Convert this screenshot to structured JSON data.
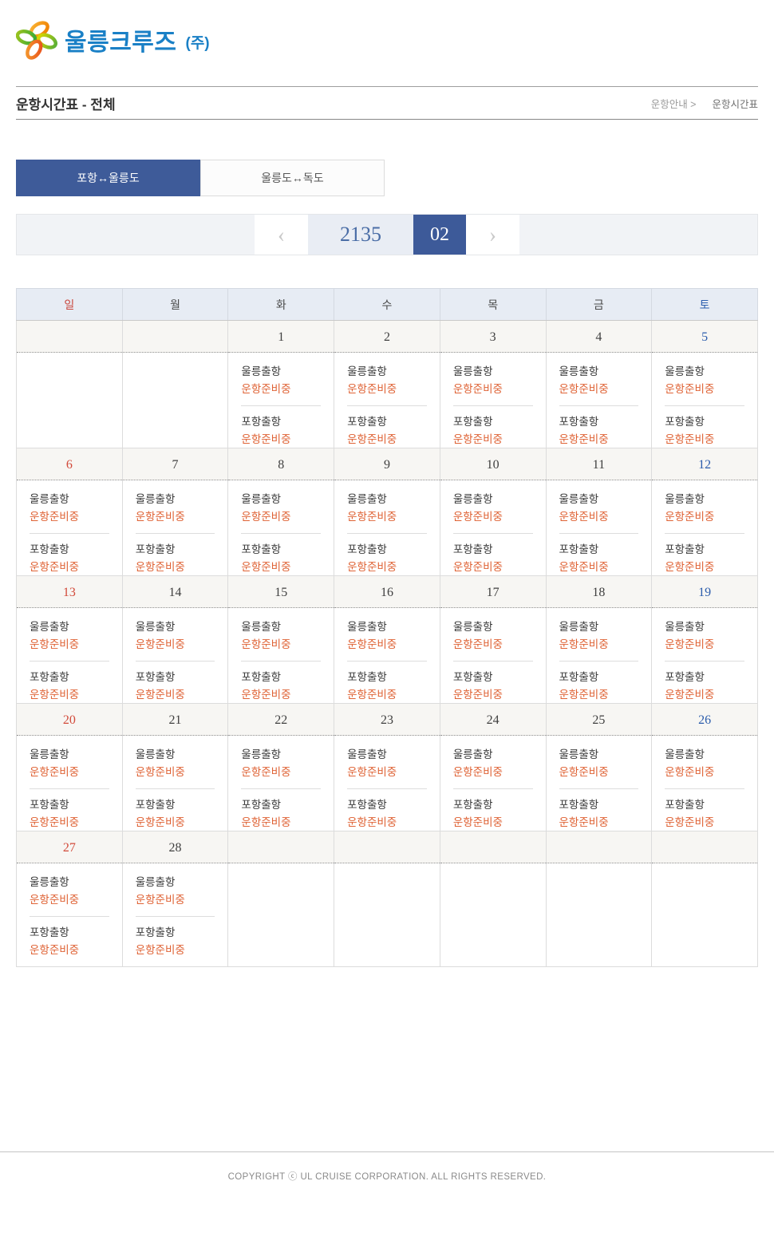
{
  "logo": {
    "text": "울릉크루즈",
    "suffix": "(주)"
  },
  "page_header": {
    "title": "운항시간표 - 전체",
    "breadcrumb": [
      {
        "label": "운항안내 >"
      },
      {
        "label": "운항시간표"
      }
    ]
  },
  "tabs": [
    {
      "label": "포항↔울릉도",
      "active": true
    },
    {
      "label": "울릉도↔독도",
      "active": false
    }
  ],
  "month_nav": {
    "prev_icon": "‹",
    "year": "2135",
    "month": "02",
    "next_icon": "›"
  },
  "calendar": {
    "weekdays": [
      {
        "label": "일",
        "type": "sun"
      },
      {
        "label": "월",
        "type": "weekday"
      },
      {
        "label": "화",
        "type": "weekday"
      },
      {
        "label": "수",
        "type": "weekday"
      },
      {
        "label": "목",
        "type": "weekday"
      },
      {
        "label": "금",
        "type": "weekday"
      },
      {
        "label": "토",
        "type": "sat"
      }
    ],
    "weeks": [
      [
        {
          "day": "",
          "entries": []
        },
        {
          "day": "",
          "entries": []
        },
        {
          "day": "1",
          "entries": [
            {
              "port": "울릉출항",
              "status": "운항준비중"
            },
            {
              "port": "포항출항",
              "status": "운항준비중"
            }
          ]
        },
        {
          "day": "2",
          "entries": [
            {
              "port": "울릉출항",
              "status": "운항준비중"
            },
            {
              "port": "포항출항",
              "status": "운항준비중"
            }
          ]
        },
        {
          "day": "3",
          "entries": [
            {
              "port": "울릉출항",
              "status": "운항준비중"
            },
            {
              "port": "포항출항",
              "status": "운항준비중"
            }
          ]
        },
        {
          "day": "4",
          "entries": [
            {
              "port": "울릉출항",
              "status": "운항준비중"
            },
            {
              "port": "포항출항",
              "status": "운항준비중"
            }
          ]
        },
        {
          "day": "5",
          "entries": [
            {
              "port": "울릉출항",
              "status": "운항준비중"
            },
            {
              "port": "포항출항",
              "status": "운항준비중"
            }
          ]
        }
      ],
      [
        {
          "day": "6",
          "entries": [
            {
              "port": "울릉출항",
              "status": "운항준비중"
            },
            {
              "port": "포항출항",
              "status": "운항준비중"
            }
          ]
        },
        {
          "day": "7",
          "entries": [
            {
              "port": "울릉출항",
              "status": "운항준비중"
            },
            {
              "port": "포항출항",
              "status": "운항준비중"
            }
          ]
        },
        {
          "day": "8",
          "entries": [
            {
              "port": "울릉출항",
              "status": "운항준비중"
            },
            {
              "port": "포항출항",
              "status": "운항준비중"
            }
          ]
        },
        {
          "day": "9",
          "entries": [
            {
              "port": "울릉출항",
              "status": "운항준비중"
            },
            {
              "port": "포항출항",
              "status": "운항준비중"
            }
          ]
        },
        {
          "day": "10",
          "entries": [
            {
              "port": "울릉출항",
              "status": "운항준비중"
            },
            {
              "port": "포항출항",
              "status": "운항준비중"
            }
          ]
        },
        {
          "day": "11",
          "entries": [
            {
              "port": "울릉출항",
              "status": "운항준비중"
            },
            {
              "port": "포항출항",
              "status": "운항준비중"
            }
          ]
        },
        {
          "day": "12",
          "entries": [
            {
              "port": "울릉출항",
              "status": "운항준비중"
            },
            {
              "port": "포항출항",
              "status": "운항준비중"
            }
          ]
        }
      ],
      [
        {
          "day": "13",
          "entries": [
            {
              "port": "울릉출항",
              "status": "운항준비중"
            },
            {
              "port": "포항출항",
              "status": "운항준비중"
            }
          ]
        },
        {
          "day": "14",
          "entries": [
            {
              "port": "울릉출항",
              "status": "운항준비중"
            },
            {
              "port": "포항출항",
              "status": "운항준비중"
            }
          ]
        },
        {
          "day": "15",
          "entries": [
            {
              "port": "울릉출항",
              "status": "운항준비중"
            },
            {
              "port": "포항출항",
              "status": "운항준비중"
            }
          ]
        },
        {
          "day": "16",
          "entries": [
            {
              "port": "울릉출항",
              "status": "운항준비중"
            },
            {
              "port": "포항출항",
              "status": "운항준비중"
            }
          ]
        },
        {
          "day": "17",
          "entries": [
            {
              "port": "울릉출항",
              "status": "운항준비중"
            },
            {
              "port": "포항출항",
              "status": "운항준비중"
            }
          ]
        },
        {
          "day": "18",
          "entries": [
            {
              "port": "울릉출항",
              "status": "운항준비중"
            },
            {
              "port": "포항출항",
              "status": "운항준비중"
            }
          ]
        },
        {
          "day": "19",
          "entries": [
            {
              "port": "울릉출항",
              "status": "운항준비중"
            },
            {
              "port": "포항출항",
              "status": "운항준비중"
            }
          ]
        }
      ],
      [
        {
          "day": "20",
          "entries": [
            {
              "port": "울릉출항",
              "status": "운항준비중"
            },
            {
              "port": "포항출항",
              "status": "운항준비중"
            }
          ]
        },
        {
          "day": "21",
          "entries": [
            {
              "port": "울릉출항",
              "status": "운항준비중"
            },
            {
              "port": "포항출항",
              "status": "운항준비중"
            }
          ]
        },
        {
          "day": "22",
          "entries": [
            {
              "port": "울릉출항",
              "status": "운항준비중"
            },
            {
              "port": "포항출항",
              "status": "운항준비중"
            }
          ]
        },
        {
          "day": "23",
          "entries": [
            {
              "port": "울릉출항",
              "status": "운항준비중"
            },
            {
              "port": "포항출항",
              "status": "운항준비중"
            }
          ]
        },
        {
          "day": "24",
          "entries": [
            {
              "port": "울릉출항",
              "status": "운항준비중"
            },
            {
              "port": "포항출항",
              "status": "운항준비중"
            }
          ]
        },
        {
          "day": "25",
          "entries": [
            {
              "port": "울릉출항",
              "status": "운항준비중"
            },
            {
              "port": "포항출항",
              "status": "운항준비중"
            }
          ]
        },
        {
          "day": "26",
          "entries": [
            {
              "port": "울릉출항",
              "status": "운항준비중"
            },
            {
              "port": "포항출항",
              "status": "운항준비중"
            }
          ]
        }
      ],
      [
        {
          "day": "27",
          "entries": [
            {
              "port": "울릉출항",
              "status": "운항준비중"
            },
            {
              "port": "포항출항",
              "status": "운항준비중"
            }
          ]
        },
        {
          "day": "28",
          "entries": [
            {
              "port": "울릉출항",
              "status": "운항준비중"
            },
            {
              "port": "포항출항",
              "status": "운항준비중"
            }
          ]
        },
        {
          "day": "",
          "entries": []
        },
        {
          "day": "",
          "entries": []
        },
        {
          "day": "",
          "entries": []
        },
        {
          "day": "",
          "entries": []
        },
        {
          "day": "",
          "entries": []
        }
      ]
    ]
  },
  "footer": {
    "copyright": "COPYRIGHT ⓒ UL CRUISE CORPORATION. ALL RIGHTS RESERVED."
  },
  "colors": {
    "accent_blue": "#3d5a99",
    "logo_blue": "#1a80c6",
    "status_orange": "#df6234",
    "sunday_red": "#d24a3a",
    "saturday_blue": "#2b5cac",
    "calendar_header_bg": "#e7ecf4",
    "day_strip_bg": "#f7f6f3",
    "year_box_bg": "#e9edf4",
    "nav_bar_bg": "#f1f3f6"
  }
}
